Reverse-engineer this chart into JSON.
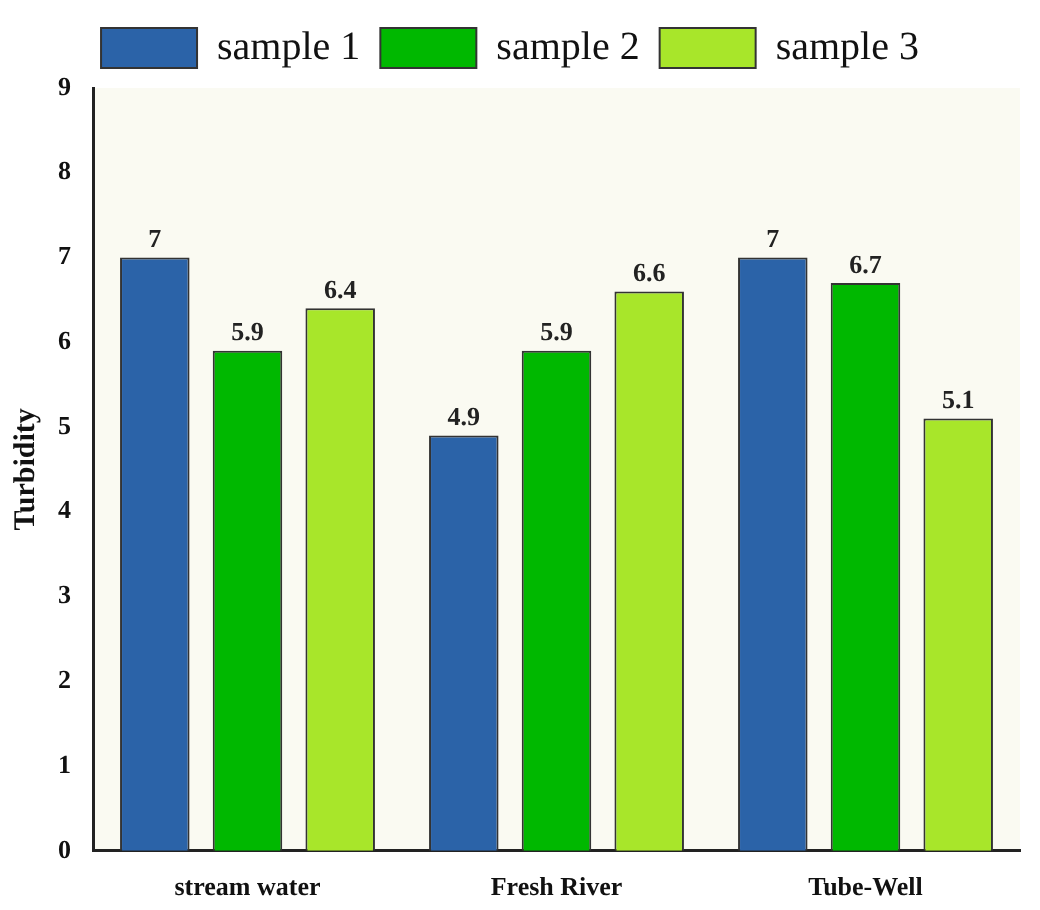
{
  "chart_data": {
    "type": "bar",
    "ylabel": "Turbidity",
    "categories": [
      "stream water",
      "Fresh River",
      "Tube-Well"
    ],
    "series": [
      {
        "name": "sample 1",
        "color": "#2b63a8",
        "values": [
          7,
          4.9,
          7
        ]
      },
      {
        "name": "sample 2",
        "color": "#00b800",
        "values": [
          5.9,
          5.9,
          6.7
        ]
      },
      {
        "name": "sample 3",
        "color": "#a8e62a",
        "values": [
          6.4,
          6.6,
          5.1
        ]
      }
    ],
    "ylim": [
      0,
      9
    ],
    "yticks": [
      0,
      1,
      2,
      3,
      4,
      5,
      6,
      7,
      8,
      9
    ],
    "grid": false,
    "legend": "top",
    "data_labels": true
  }
}
